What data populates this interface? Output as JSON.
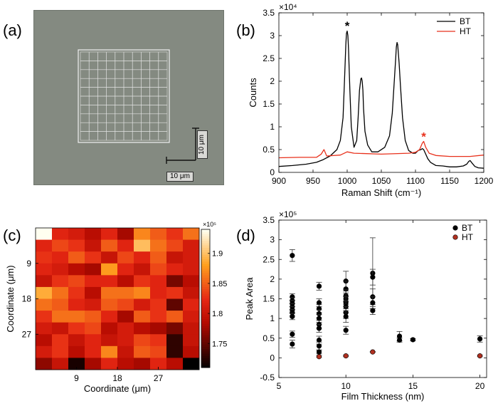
{
  "panel_labels": {
    "a": "(a)",
    "b": "(b)",
    "c": "(c)",
    "d": "(d)"
  },
  "micrograph": {
    "scale_bar_vertical": "10 μm",
    "scale_bar_horizontal": "10 μm",
    "grid_divisions": 10,
    "colors": {
      "background": "#848a81",
      "grid": "#e8e8e8"
    }
  },
  "chart_data": [
    {
      "id": "b",
      "type": "line",
      "title": "",
      "xlabel": "Raman Shift (cm⁻¹)",
      "ylabel": "Counts",
      "multiplier": "×10⁴",
      "xlim": [
        900,
        1200
      ],
      "ylim": [
        0,
        3.5
      ],
      "xticks": [
        900,
        950,
        1000,
        1050,
        1100,
        1150,
        1200
      ],
      "yticks": [
        0,
        0.5,
        1,
        1.5,
        2,
        2.5,
        3,
        3.5
      ],
      "ytick_labels": [
        "0",
        "0.5",
        "1",
        "1.5",
        "2",
        "2.5",
        "3",
        "3.5"
      ],
      "legend_position": "top-right",
      "series": [
        {
          "name": "BT",
          "color": "#000000",
          "x": [
            900,
            920,
            940,
            955,
            965,
            975,
            985,
            990,
            994,
            996,
            998,
            999,
            1000,
            1001,
            1002,
            1004,
            1006,
            1010,
            1014,
            1016,
            1018,
            1020,
            1021,
            1022,
            1023,
            1024,
            1026,
            1030,
            1036,
            1045,
            1055,
            1062,
            1066,
            1069,
            1071,
            1072,
            1073,
            1074,
            1076,
            1078,
            1081,
            1085,
            1090,
            1096,
            1100,
            1104,
            1108,
            1110,
            1112,
            1115,
            1118,
            1122,
            1130,
            1140,
            1150,
            1160,
            1170,
            1175,
            1178,
            1180,
            1183,
            1187,
            1192,
            1200
          ],
          "values": [
            0.13,
            0.15,
            0.18,
            0.22,
            0.28,
            0.36,
            0.5,
            0.7,
            1.2,
            2.0,
            2.8,
            3.05,
            3.1,
            3.0,
            2.7,
            1.8,
            1.0,
            0.55,
            0.7,
            1.2,
            1.8,
            2.05,
            2.07,
            2.0,
            1.8,
            1.4,
            0.9,
            0.6,
            0.45,
            0.45,
            0.55,
            0.8,
            1.3,
            2.0,
            2.5,
            2.75,
            2.85,
            2.8,
            2.4,
            1.9,
            1.2,
            0.7,
            0.48,
            0.42,
            0.42,
            0.48,
            0.5,
            0.52,
            0.5,
            0.4,
            0.3,
            0.22,
            0.15,
            0.14,
            0.12,
            0.12,
            0.14,
            0.18,
            0.24,
            0.26,
            0.2,
            0.13,
            0.1,
            0.09
          ]
        },
        {
          "name": "HT",
          "color": "#e8311c",
          "x": [
            900,
            930,
            955,
            962,
            966,
            970,
            990,
            1000,
            1010,
            1050,
            1090,
            1100,
            1106,
            1110,
            1112,
            1115,
            1120,
            1130,
            1150,
            1180,
            1200
          ],
          "values": [
            0.32,
            0.33,
            0.33,
            0.4,
            0.5,
            0.36,
            0.38,
            0.45,
            0.42,
            0.4,
            0.42,
            0.44,
            0.5,
            0.64,
            0.68,
            0.55,
            0.42,
            0.37,
            0.35,
            0.35,
            0.38
          ]
        }
      ],
      "annotations": [
        {
          "text": "*",
          "x": 1000,
          "y": 3.25,
          "color": "#000000"
        },
        {
          "text": "*",
          "x": 1112,
          "y": 0.82,
          "color": "#e8311c"
        }
      ]
    },
    {
      "id": "c",
      "type": "heatmap",
      "title": "",
      "xlabel": "Coordinate (μm)",
      "ylabel": "Coordinate (μm)",
      "xticks": [
        9,
        18,
        27
      ],
      "yticks": [
        9,
        18,
        27
      ],
      "extent": [
        0,
        36
      ],
      "colorbar": {
        "min": 1.71,
        "max": 1.94,
        "ticks": [
          1.75,
          1.8,
          1.85,
          1.9
        ],
        "multiplier": "×10⁵"
      },
      "grid": [
        [
          1.94,
          1.82,
          1.81,
          1.79,
          1.82,
          1.78,
          1.87,
          1.85,
          1.83,
          1.86
        ],
        [
          1.82,
          1.84,
          1.83,
          1.8,
          1.85,
          1.82,
          1.9,
          1.86,
          1.84,
          1.81
        ],
        [
          1.83,
          1.82,
          1.85,
          1.83,
          1.8,
          1.84,
          1.82,
          1.85,
          1.8,
          1.81
        ],
        [
          1.82,
          1.81,
          1.79,
          1.78,
          1.88,
          1.82,
          1.8,
          1.84,
          1.82,
          1.81
        ],
        [
          1.8,
          1.83,
          1.84,
          1.82,
          1.82,
          1.79,
          1.83,
          1.82,
          1.76,
          1.79
        ],
        [
          1.89,
          1.86,
          1.83,
          1.79,
          1.86,
          1.86,
          1.87,
          1.82,
          1.83,
          1.8
        ],
        [
          1.86,
          1.85,
          1.82,
          1.81,
          1.85,
          1.84,
          1.81,
          1.83,
          1.75,
          1.82
        ],
        [
          1.83,
          1.86,
          1.86,
          1.85,
          1.82,
          1.78,
          1.85,
          1.83,
          1.85,
          1.81
        ],
        [
          1.81,
          1.8,
          1.83,
          1.84,
          1.79,
          1.81,
          1.79,
          1.78,
          1.76,
          1.8
        ],
        [
          1.79,
          1.83,
          1.8,
          1.82,
          1.8,
          1.81,
          1.84,
          1.83,
          1.73,
          1.8
        ],
        [
          1.81,
          1.83,
          1.79,
          1.82,
          1.87,
          1.8,
          1.85,
          1.84,
          1.73,
          1.79
        ],
        [
          1.77,
          1.8,
          1.72,
          1.78,
          1.82,
          1.79,
          1.78,
          1.82,
          1.79,
          1.71
        ]
      ]
    },
    {
      "id": "d",
      "type": "scatter",
      "title": "",
      "xlabel": "Film Thickness (nm)",
      "ylabel": "Peak Area",
      "multiplier": "×10⁵",
      "xlim": [
        5,
        20.5
      ],
      "ylim": [
        -0.5,
        3.5
      ],
      "xticks": [
        5,
        10,
        15,
        20
      ],
      "yticks": [
        -0.5,
        0,
        0.5,
        1,
        1.5,
        2,
        2.5,
        3,
        3.5
      ],
      "ytick_labels": [
        "-0.5",
        "0",
        "0.5",
        "1",
        "1.5",
        "2",
        "2.5",
        "3",
        "3.5"
      ],
      "legend_position": "top-right",
      "series": [
        {
          "name": "BT",
          "color": "#000000",
          "points": [
            {
              "x": 6,
              "y": 2.6,
              "err": 0.15
            },
            {
              "x": 6,
              "y": 1.55,
              "err": 0.08
            },
            {
              "x": 6,
              "y": 1.45,
              "err": 0.08
            },
            {
              "x": 6,
              "y": 1.38,
              "err": 0.08
            },
            {
              "x": 6,
              "y": 1.3,
              "err": 0.08
            },
            {
              "x": 6,
              "y": 1.22,
              "err": 0.08
            },
            {
              "x": 6,
              "y": 1.15,
              "err": 0.08
            },
            {
              "x": 6,
              "y": 1.05,
              "err": 0.08
            },
            {
              "x": 6,
              "y": 0.6,
              "err": 0.08
            },
            {
              "x": 6,
              "y": 0.35,
              "err": 0.1
            },
            {
              "x": 8,
              "y": 1.82,
              "err": 0.1
            },
            {
              "x": 8,
              "y": 1.4,
              "err": 0.1
            },
            {
              "x": 8,
              "y": 1.25,
              "err": 0.1
            },
            {
              "x": 8,
              "y": 1.12,
              "err": 0.1
            },
            {
              "x": 8,
              "y": 1.0,
              "err": 0.1
            },
            {
              "x": 8,
              "y": 0.85,
              "err": 0.1
            },
            {
              "x": 8,
              "y": 0.75,
              "err": 0.1
            },
            {
              "x": 8,
              "y": 0.45,
              "err": 0.1
            },
            {
              "x": 8,
              "y": 0.3,
              "err": 0.1
            },
            {
              "x": 8,
              "y": 0.15,
              "err": 0.05
            },
            {
              "x": 10,
              "y": 1.95,
              "err": 0.25
            },
            {
              "x": 10,
              "y": 1.75,
              "err": 0.2
            },
            {
              "x": 10,
              "y": 1.58,
              "err": 0.15
            },
            {
              "x": 10,
              "y": 1.5,
              "err": 0.15
            },
            {
              "x": 10,
              "y": 1.4,
              "err": 0.15
            },
            {
              "x": 10,
              "y": 1.3,
              "err": 0.15
            },
            {
              "x": 10,
              "y": 1.15,
              "err": 0.15
            },
            {
              "x": 10,
              "y": 1.05,
              "err": 0.15
            },
            {
              "x": 10,
              "y": 0.7,
              "err": 0.1
            },
            {
              "x": 12,
              "y": 2.15,
              "err": 0.9
            },
            {
              "x": 12,
              "y": 2.05,
              "err": 0.2
            },
            {
              "x": 12,
              "y": 1.55,
              "err": 0.2
            },
            {
              "x": 12,
              "y": 1.4,
              "err": 0.15
            },
            {
              "x": 12,
              "y": 1.2,
              "err": 0.1
            },
            {
              "x": 14,
              "y": 0.55,
              "err": 0.12
            },
            {
              "x": 14,
              "y": 0.45,
              "err": 0.05
            },
            {
              "x": 15,
              "y": 0.46,
              "err": 0.03
            },
            {
              "x": 20,
              "y": 0.48,
              "err": 0.08
            }
          ]
        },
        {
          "name": "HT",
          "color": "#b03020",
          "points": [
            {
              "x": 8,
              "y": 0.03,
              "err": 0.02
            },
            {
              "x": 10,
              "y": 0.05,
              "err": 0.02
            },
            {
              "x": 12,
              "y": 0.15,
              "err": 0.01
            },
            {
              "x": 20,
              "y": 0.05,
              "err": 0.02
            }
          ]
        }
      ]
    }
  ]
}
